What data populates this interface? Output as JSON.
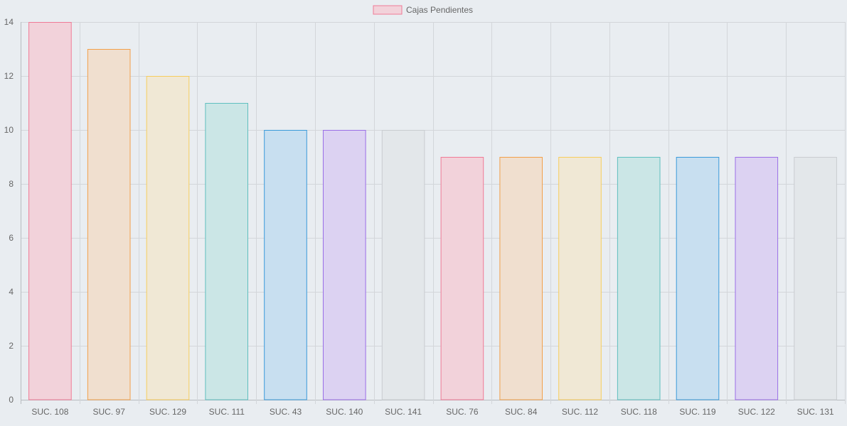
{
  "chart_data": {
    "type": "bar",
    "legend": {
      "position": "top",
      "label": "Cajas Pendientes",
      "fill_color": "#f2d2da",
      "border_color": "#f07a96"
    },
    "categories": [
      "SUC. 108",
      "SUC. 97",
      "SUC. 129",
      "SUC. 111",
      "SUC. 43",
      "SUC. 140",
      "SUC. 141",
      "SUC. 76",
      "SUC. 84",
      "SUC. 112",
      "SUC. 118",
      "SUC. 119",
      "SUC. 122",
      "SUC. 131"
    ],
    "series": [
      {
        "name": "Cajas Pendientes",
        "values": [
          14,
          13,
          12,
          11,
          10,
          10,
          10,
          9,
          9,
          9,
          9,
          9,
          9,
          9
        ]
      }
    ],
    "bar_colors": [
      {
        "fill": "#f2d2da",
        "border": "#f07a96"
      },
      {
        "fill": "#f0dfcf",
        "border": "#f2a04a"
      },
      {
        "fill": "#f0e8d5",
        "border": "#f7cd5c"
      },
      {
        "fill": "#cbe6e6",
        "border": "#5fbfbf"
      },
      {
        "fill": "#c8dff0",
        "border": "#3a9ad9"
      },
      {
        "fill": "#dcd2f2",
        "border": "#9a6ee6"
      },
      {
        "fill": "#e3e7ea",
        "border": "#c9ccd0"
      },
      {
        "fill": "#f2d2da",
        "border": "#f07a96"
      },
      {
        "fill": "#f0dfcf",
        "border": "#f2a04a"
      },
      {
        "fill": "#f0e8d5",
        "border": "#f7cd5c"
      },
      {
        "fill": "#cbe6e6",
        "border": "#5fbfbf"
      },
      {
        "fill": "#c8dff0",
        "border": "#3a9ad9"
      },
      {
        "fill": "#dcd2f2",
        "border": "#9a6ee6"
      },
      {
        "fill": "#e3e7ea",
        "border": "#c9ccd0"
      }
    ],
    "y_ticks": [
      0,
      2,
      4,
      6,
      8,
      10,
      12,
      14
    ],
    "ylim": [
      0,
      14
    ],
    "grid": true,
    "grid_color": "#d3d6da",
    "text_color": "#666666"
  }
}
